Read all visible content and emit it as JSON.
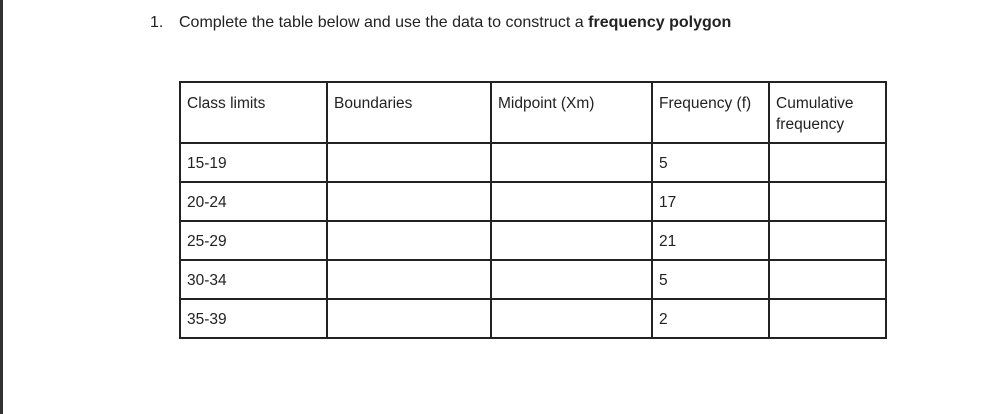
{
  "question": {
    "number": "1.",
    "text": "Complete the table below and use the data to construct a ",
    "emphasis": "frequency polygon"
  },
  "table": {
    "headers": [
      "Class limits",
      "Boundaries",
      "Midpoint (Xm)",
      "Frequency (f)",
      "Cumulative frequency"
    ],
    "rows": [
      [
        "15-19",
        "",
        "",
        "5",
        ""
      ],
      [
        "20-24",
        "",
        "",
        "17",
        ""
      ],
      [
        "25-29",
        "",
        "",
        "21",
        ""
      ],
      [
        "30-34",
        "",
        "",
        "5",
        ""
      ],
      [
        "35-39",
        "",
        "",
        "2",
        ""
      ]
    ]
  }
}
